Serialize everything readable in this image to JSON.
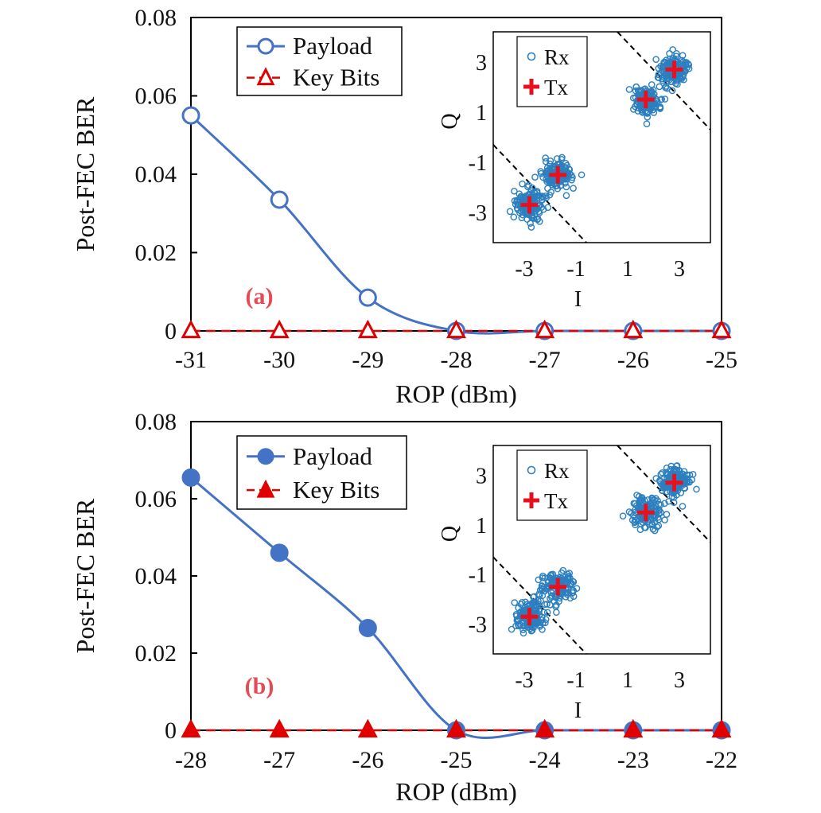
{
  "colors": {
    "payload": "#4472C4",
    "keybits": "#E00000",
    "rx": "#2C7FBF",
    "tx": "#E8101E",
    "panel_tag": "#E84A55"
  },
  "chart_data": [
    {
      "type": "line",
      "panel_label": "(a)",
      "xlabel": "ROP (dBm)",
      "ylabel": "Post-FEC BER",
      "x": [
        -31,
        -30,
        -29,
        -28,
        -27,
        -26,
        -25
      ],
      "x_tick_labels": [
        "-31",
        "-30",
        "-29",
        "-28",
        "-27",
        "-26",
        "-25"
      ],
      "xlim": [
        -31,
        -25
      ],
      "ylim": [
        0,
        0.08
      ],
      "y_ticks": [
        0,
        0.02,
        0.04,
        0.06,
        0.08
      ],
      "y_tick_labels": [
        "0",
        "0.02",
        "0.04",
        "0.06",
        "0.08"
      ],
      "legend_position": "top-left",
      "series": [
        {
          "name": "Payload",
          "marker": "open-circle",
          "line": "solid",
          "values": [
            0.055,
            0.0335,
            0.0085,
            0,
            0,
            0,
            0
          ]
        },
        {
          "name": "Key Bits",
          "marker": "open-triangle",
          "line": "dashed",
          "values": [
            0,
            0,
            0,
            0,
            0,
            0,
            0
          ]
        }
      ],
      "inset": {
        "type": "scatter",
        "xlabel": "I",
        "ylabel": "Q",
        "xlim": [
          -4.2,
          4.2
        ],
        "ylim": [
          -4.2,
          4.2
        ],
        "x_ticks": [
          -3,
          -1,
          1,
          3
        ],
        "x_tick_labels": [
          "-3",
          "-1",
          "1",
          "3"
        ],
        "y_ticks": [
          3,
          1,
          -1,
          -3
        ],
        "y_tick_labels": [
          "3",
          "1",
          "-1",
          "-3"
        ],
        "legend": [
          "Rx",
          "Tx"
        ],
        "tx_points": [
          [
            -2.8,
            -2.7
          ],
          [
            -1.7,
            -1.5
          ],
          [
            1.7,
            1.5
          ],
          [
            2.8,
            2.7
          ]
        ],
        "spread": 0.5,
        "decision_lines": [
          [
            [
              -4.2,
              -0.3
            ],
            [
              -0.6,
              -4.2
            ]
          ],
          [
            [
              0.6,
              4.2
            ],
            [
              4.2,
              0.3
            ]
          ]
        ]
      }
    },
    {
      "type": "line",
      "panel_label": "(b)",
      "xlabel": "ROP (dBm)",
      "ylabel": "Post-FEC BER",
      "x": [
        -28,
        -27,
        -26,
        -25,
        -24,
        -23,
        -22
      ],
      "x_tick_labels": [
        "-28",
        "-27",
        "-26",
        "-25",
        "-24",
        "-23",
        "-22"
      ],
      "xlim": [
        -28,
        -22
      ],
      "ylim": [
        0,
        0.08
      ],
      "y_ticks": [
        0,
        0.02,
        0.04,
        0.06,
        0.08
      ],
      "y_tick_labels": [
        "0",
        "0.02",
        "0.04",
        "0.06",
        "0.08"
      ],
      "legend_position": "top-left",
      "series": [
        {
          "name": "Payload",
          "marker": "filled-circle",
          "line": "solid",
          "values": [
            0.0655,
            0.046,
            0.0265,
            0,
            0,
            0,
            0
          ]
        },
        {
          "name": "Key Bits",
          "marker": "filled-triangle",
          "line": "dashed",
          "values": [
            0,
            0,
            0,
            0,
            0,
            0,
            0
          ]
        }
      ],
      "inset": {
        "type": "scatter",
        "xlabel": "I",
        "ylabel": "Q",
        "xlim": [
          -4.2,
          4.2
        ],
        "ylim": [
          -4.2,
          4.2
        ],
        "x_ticks": [
          -3,
          -1,
          1,
          3
        ],
        "x_tick_labels": [
          "-3",
          "-1",
          "1",
          "3"
        ],
        "y_ticks": [
          3,
          1,
          -1,
          -3
        ],
        "y_tick_labels": [
          "3",
          "1",
          "-1",
          "-3"
        ],
        "legend": [
          "Rx",
          "Tx"
        ],
        "tx_points": [
          [
            -2.8,
            -2.7
          ],
          [
            -1.7,
            -1.5
          ],
          [
            1.7,
            1.5
          ],
          [
            2.8,
            2.7
          ]
        ],
        "spread": 0.55,
        "decision_lines": [
          [
            [
              -4.2,
              -0.3
            ],
            [
              -0.6,
              -4.2
            ]
          ],
          [
            [
              0.6,
              4.2
            ],
            [
              4.2,
              0.3
            ]
          ]
        ]
      }
    }
  ]
}
